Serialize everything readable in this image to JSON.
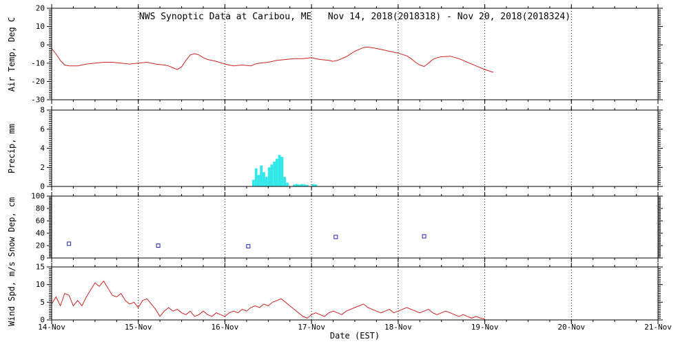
{
  "title": "NWS Synoptic Data at Caribou, ME   Nov 14, 2018(2018318) - Nov 20, 2018(2018324)",
  "xlabel": "Date (EST)",
  "x_range": [
    0,
    7
  ],
  "x_ticks": [
    0,
    1,
    2,
    3,
    4,
    5,
    6,
    7
  ],
  "x_tick_labels": [
    "14-Nov",
    "15-Nov",
    "16-Nov",
    "17-Nov",
    "18-Nov",
    "19-Nov",
    "20-Nov",
    "21-Nov"
  ],
  "colors": {
    "line": "#cc2222",
    "precip": "#33e8e8",
    "snow": "#2222bb",
    "axis": "#000000",
    "grid": "#000000",
    "background": "#ffffff"
  },
  "chart_data": [
    {
      "type": "line",
      "name": "air-temp",
      "ylabel": "Air Temp, Deg C",
      "ylim": [
        -30,
        20
      ],
      "yticks": [
        -30,
        -20,
        -10,
        0,
        10,
        20
      ],
      "minor_step": 1,
      "x": [
        0,
        0.05,
        0.1,
        0.15,
        0.2,
        0.3,
        0.4,
        0.5,
        0.6,
        0.7,
        0.8,
        0.9,
        1.0,
        1.1,
        1.2,
        1.3,
        1.35,
        1.4,
        1.45,
        1.5,
        1.55,
        1.6,
        1.65,
        1.7,
        1.75,
        1.8,
        1.9,
        2.0,
        2.05,
        2.1,
        2.2,
        2.3,
        2.35,
        2.4,
        2.5,
        2.6,
        2.7,
        2.8,
        2.9,
        3.0,
        3.05,
        3.1,
        3.2,
        3.25,
        3.3,
        3.4,
        3.5,
        3.55,
        3.6,
        3.65,
        3.7,
        3.8,
        3.9,
        4.0,
        4.1,
        4.15,
        4.2,
        4.25,
        4.3,
        4.35,
        4.4,
        4.45,
        4.5,
        4.6,
        4.7,
        4.8,
        4.9,
        5.0,
        5.1
      ],
      "y": [
        -2,
        -5,
        -8.5,
        -11,
        -11.5,
        -11.5,
        -10.5,
        -10,
        -9.5,
        -9.5,
        -10,
        -10.5,
        -10,
        -9.5,
        -10.5,
        -11,
        -11.5,
        -12.5,
        -13.5,
        -12,
        -8.5,
        -5.5,
        -4.8,
        -5.5,
        -7,
        -8,
        -9,
        -10.5,
        -11,
        -11.5,
        -11,
        -11.5,
        -10.5,
        -10,
        -9.5,
        -8.5,
        -8,
        -7.5,
        -7.5,
        -7,
        -7.5,
        -8,
        -8.5,
        -9,
        -8.5,
        -6.5,
        -3.5,
        -2.5,
        -1.5,
        -1.2,
        -1.5,
        -2.5,
        -3.5,
        -4.5,
        -6,
        -7.5,
        -9.5,
        -11,
        -11.8,
        -10,
        -8,
        -7,
        -6.5,
        -6.2,
        -7.5,
        -9.5,
        -11.5,
        -13.5,
        -15
      ]
    },
    {
      "type": "bar",
      "name": "precip",
      "ylabel": "Precip, mm",
      "ylim": [
        0,
        8
      ],
      "yticks": [
        0,
        2,
        4,
        6,
        8
      ],
      "minor_step": 0.2,
      "bar_width": 0.03,
      "x": [
        2.33,
        2.36,
        2.39,
        2.42,
        2.45,
        2.48,
        2.51,
        2.54,
        2.57,
        2.6,
        2.63,
        2.66,
        2.69,
        2.72,
        2.8,
        2.83,
        2.86,
        2.89,
        2.92,
        2.95,
        3.02,
        3.05
      ],
      "y": [
        0.7,
        1.9,
        1.2,
        2.2,
        1.5,
        1.0,
        2.0,
        2.3,
        2.6,
        2.9,
        3.3,
        3.1,
        1.0,
        0.4,
        0.2,
        0.25,
        0.2,
        0.25,
        0.2,
        0.15,
        0.25,
        0.2
      ]
    },
    {
      "type": "scatter",
      "name": "snow-depth",
      "ylabel": "Snow Dep, cm",
      "ylim": [
        0,
        100
      ],
      "yticks": [
        0,
        20,
        40,
        60,
        80,
        100
      ],
      "minor_step": 2,
      "x": [
        0.2,
        1.23,
        2.27,
        3.28,
        4.3
      ],
      "y": [
        23,
        20,
        19,
        34,
        35
      ]
    },
    {
      "type": "line",
      "name": "wind-speed",
      "ylabel": "Wind Spd, m/s",
      "ylim": [
        0,
        15
      ],
      "yticks": [
        0,
        5,
        10,
        15
      ],
      "minor_step": 0.5,
      "x_start": 0,
      "x_step": 0.05,
      "y": [
        4.5,
        6.5,
        4.0,
        7.5,
        7.0,
        4.0,
        5.5,
        4.0,
        6.5,
        8.5,
        10.5,
        9.5,
        11.0,
        9.0,
        7.0,
        6.5,
        7.5,
        5.5,
        4.5,
        5.0,
        3.5,
        5.5,
        6.0,
        4.5,
        3.0,
        1.0,
        2.5,
        3.5,
        2.5,
        3.0,
        2.0,
        1.5,
        2.5,
        1.0,
        1.5,
        2.5,
        1.5,
        1.0,
        2.0,
        1.5,
        1.0,
        2.0,
        2.5,
        2.0,
        3.0,
        2.5,
        3.5,
        4.0,
        3.5,
        4.5,
        4.0,
        5.0,
        5.5,
        6.0,
        5.0,
        4.0,
        3.0,
        2.0,
        1.0,
        0.5,
        1.5,
        2.0,
        1.5,
        1.0,
        2.0,
        2.5,
        2.0,
        1.5,
        2.5,
        3.0,
        3.5,
        4.0,
        4.5,
        3.5,
        3.0,
        2.5,
        2.0,
        2.5,
        3.0,
        2.0,
        2.5,
        3.0,
        3.5,
        3.0,
        2.5,
        2.0,
        2.5,
        3.0,
        2.0,
        1.5,
        2.0,
        2.5,
        2.0,
        1.5,
        1.0,
        1.5,
        1.0,
        0.5,
        1.0,
        0.5,
        0.3
      ]
    }
  ]
}
